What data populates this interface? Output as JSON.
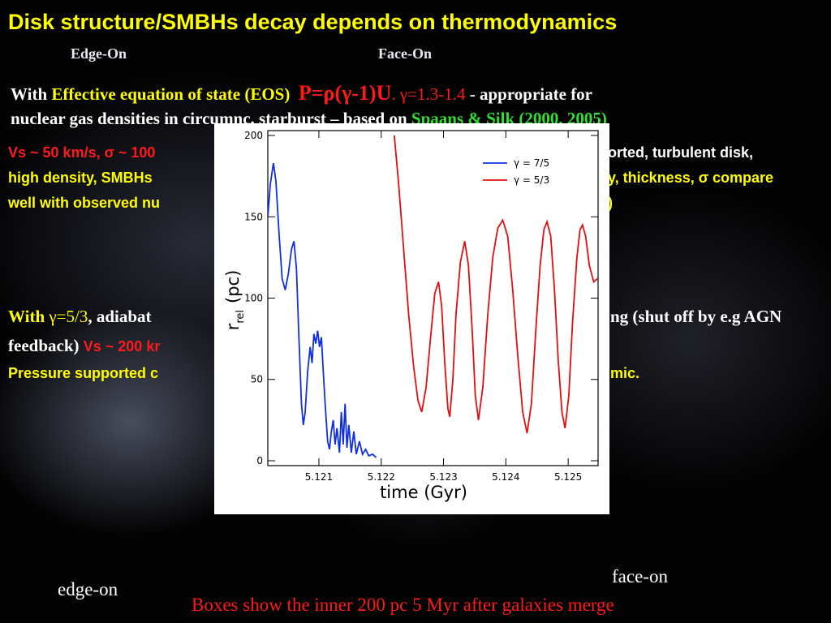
{
  "slide": {
    "title": "Disk structure/SMBHs decay depends on thermodynamics",
    "edge_on_top": "Edge-On",
    "face_on_top": "Face-On",
    "p1": [
      "With ",
      "Effective equation of state (EOS)",
      "P=ρ(γ-1)U",
      ". γ=1.3-1.4",
      " - appropriate for"
    ],
    "p2": [
      "nuclear gas densities in circumnc.  starburst – based  on ",
      "Spaans & Silk (2000, 2005)"
    ],
    "p3_left": [
      "Vs ~ 50 km/s, σ ~ 100",
      "high density, SMBHs",
      "well with observed nu"
    ],
    "p3_right": [
      "orted, turbulent disk,",
      "y, thickness, σ compare",
      ")"
    ],
    "p4_left": [
      "With ",
      "γ=5/3",
      ", adiabat"
    ],
    "p4_right": "ng (shut off by e.g AGN",
    "p5": [
      "feedback) ",
      "Vs ~ 200 kr"
    ],
    "p6_left": "Pressure supported c",
    "p6_right": "mic.",
    "edge_on": "edge-on",
    "face_on": "face-on",
    "caption": "Boxes show the inner 200 pc 5 Myr after galaxies merge"
  },
  "chart_data": {
    "type": "line",
    "xlabel": "time (Gyr)",
    "ylabel": "r",
    "ylabel_sub": "rel",
    "ylabel_unit": "(pc)",
    "xlim": [
      5.12018,
      5.12548
    ],
    "ylim": [
      -3,
      203
    ],
    "xticks": [
      5.121,
      5.122,
      5.123,
      5.124,
      5.125
    ],
    "yticks": [
      0,
      50,
      100,
      150,
      200
    ],
    "legend": "upper right",
    "series": [
      {
        "name": "γ = 7/5",
        "color": "#1030e0",
        "x": [
          5.12018,
          5.12022,
          5.12027,
          5.12031,
          5.12036,
          5.12041,
          5.12046,
          5.12051,
          5.12056,
          5.1206,
          5.12064,
          5.12068,
          5.12072,
          5.12075,
          5.12078,
          5.12082,
          5.12086,
          5.12089,
          5.12092,
          5.12095,
          5.12098,
          5.12101,
          5.12104,
          5.12107,
          5.1211,
          5.12114,
          5.12117,
          5.1212,
          5.12123,
          5.12126,
          5.12129,
          5.12133,
          5.12136,
          5.12139,
          5.12142,
          5.12145,
          5.12148,
          5.12152,
          5.12156,
          5.1216,
          5.12165,
          5.1217,
          5.12175,
          5.1218,
          5.12186,
          5.12192
        ],
        "values": [
          150,
          170,
          183,
          172,
          140,
          112,
          105,
          115,
          130,
          135,
          118,
          75,
          35,
          22,
          30,
          55,
          70,
          60,
          78,
          72,
          80,
          70,
          76,
          55,
          35,
          12,
          7,
          18,
          25,
          10,
          20,
          5,
          30,
          10,
          35,
          8,
          22,
          5,
          18,
          4,
          12,
          4,
          7,
          3,
          4,
          2
        ]
      },
      {
        "name": "γ = 5/3",
        "color": "#e01010",
        "x": [
          5.12221,
          5.12228,
          5.12236,
          5.12244,
          5.12252,
          5.12259,
          5.12265,
          5.12272,
          5.12279,
          5.12286,
          5.12292,
          5.12297,
          5.12302,
          5.12307,
          5.1231,
          5.12315,
          5.1232,
          5.12327,
          5.12334,
          5.1234,
          5.12346,
          5.12351,
          5.12356,
          5.12363,
          5.12371,
          5.12379,
          5.12387,
          5.12395,
          5.12403,
          5.12411,
          5.12419,
          5.12427,
          5.12434,
          5.12441,
          5.12448,
          5.12455,
          5.12461,
          5.12466,
          5.12472,
          5.12478,
          5.12484,
          5.1249,
          5.12495,
          5.12501,
          5.12507,
          5.12514,
          5.12519,
          5.12523,
          5.12528,
          5.12534,
          5.12541,
          5.12547
        ],
        "values": [
          200,
          170,
          130,
          90,
          58,
          37,
          30,
          45,
          75,
          103,
          110,
          95,
          60,
          32,
          27,
          50,
          90,
          122,
          135,
          120,
          80,
          40,
          25,
          45,
          90,
          125,
          143,
          148,
          138,
          105,
          65,
          30,
          17,
          35,
          80,
          120,
          142,
          147,
          138,
          105,
          62,
          30,
          20,
          40,
          85,
          125,
          142,
          145,
          138,
          120,
          110,
          112
        ]
      }
    ]
  }
}
